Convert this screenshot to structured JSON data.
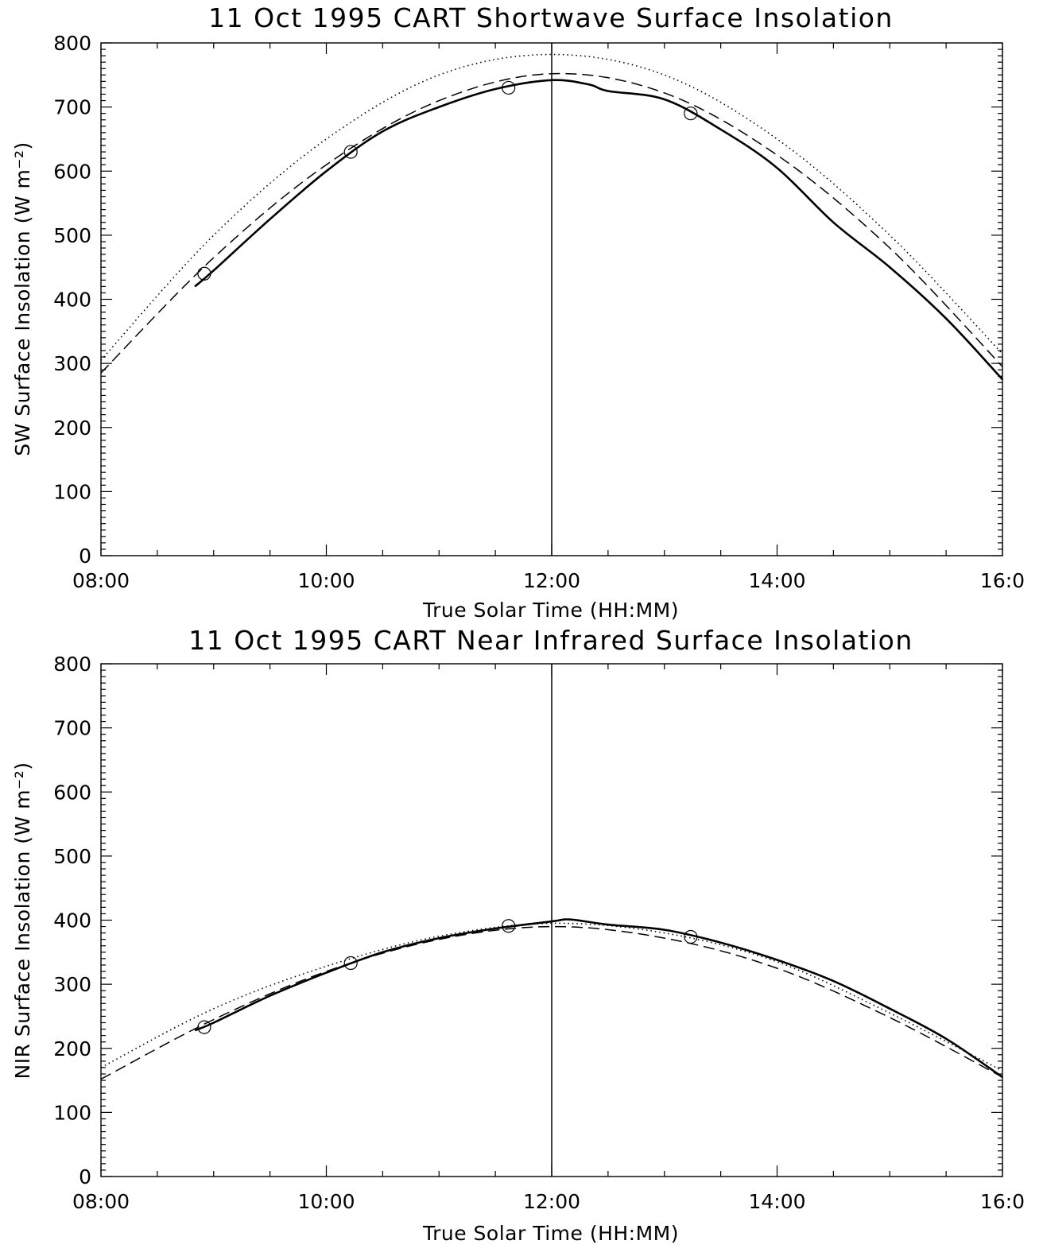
{
  "chart_data": [
    {
      "type": "line",
      "title": "11 Oct 1995 CART Shortwave Surface Insolation",
      "xlabel": "True Solar Time (HH:MM)",
      "ylabel": "SW Surface Insolation (W m⁻²)",
      "xlim": [
        "08:00",
        "16:00"
      ],
      "ylim": [
        0,
        800
      ],
      "x_ticks": [
        "08:00",
        "10:00",
        "12:00",
        "14:00",
        "16:0"
      ],
      "y_ticks": [
        "0",
        "100",
        "200",
        "300",
        "400",
        "500",
        "600",
        "700",
        "800"
      ],
      "grid": false,
      "reference_line_x": "12:00",
      "series": [
        {
          "style": "dotted",
          "x": [
            "08:00",
            "09:00",
            "10:00",
            "11:00",
            "12:00",
            "13:00",
            "14:00",
            "15:00",
            "16:00"
          ],
          "y": [
            305,
            500,
            650,
            750,
            782,
            750,
            650,
            500,
            315
          ]
        },
        {
          "style": "dashed",
          "x": [
            "08:00",
            "09:00",
            "10:00",
            "11:00",
            "12:00",
            "13:00",
            "14:00",
            "15:00",
            "16:00"
          ],
          "y": [
            285,
            465,
            610,
            710,
            752,
            722,
            625,
            480,
            295
          ]
        },
        {
          "style": "solid",
          "x": [
            "08:50",
            "09:00",
            "09:30",
            "10:00",
            "10:30",
            "11:00",
            "11:30",
            "12:00",
            "12:20",
            "12:30",
            "13:00",
            "13:30",
            "14:00",
            "14:30",
            "15:00",
            "15:30",
            "16:00"
          ],
          "y": [
            420,
            445,
            525,
            600,
            662,
            700,
            728,
            742,
            735,
            725,
            712,
            665,
            605,
            520,
            450,
            370,
            275
          ]
        },
        {
          "style": "circle-markers",
          "x": [
            "08:55",
            "10:13",
            "11:37",
            "13:14"
          ],
          "y": [
            440,
            630,
            730,
            690
          ]
        }
      ]
    },
    {
      "type": "line",
      "title": "11 Oct 1995 CART Near Infrared Surface Insolation",
      "xlabel": "True Solar Time (HH:MM)",
      "ylabel": "NIR Surface Insolation (W m⁻²)",
      "xlim": [
        "08:00",
        "16:00"
      ],
      "ylim": [
        0,
        800
      ],
      "x_ticks": [
        "08:00",
        "10:00",
        "12:00",
        "14:00",
        "16:0"
      ],
      "y_ticks": [
        "0",
        "100",
        "200",
        "300",
        "400",
        "500",
        "600",
        "700",
        "800"
      ],
      "grid": false,
      "reference_line_x": "12:00",
      "series": [
        {
          "style": "dotted",
          "x": [
            "08:00",
            "09:00",
            "10:00",
            "11:00",
            "12:00",
            "13:00",
            "14:00",
            "15:00",
            "16:00"
          ],
          "y": [
            170,
            262,
            328,
            375,
            395,
            380,
            335,
            255,
            165
          ]
        },
        {
          "style": "dashed",
          "x": [
            "08:00",
            "09:00",
            "10:00",
            "11:00",
            "12:00",
            "13:00",
            "14:00",
            "15:00",
            "16:00"
          ],
          "y": [
            152,
            245,
            320,
            370,
            390,
            372,
            325,
            248,
            155
          ]
        },
        {
          "style": "solid",
          "x": [
            "08:50",
            "09:00",
            "09:30",
            "10:00",
            "10:30",
            "11:00",
            "11:30",
            "12:00",
            "12:10",
            "12:30",
            "13:00",
            "13:30",
            "14:00",
            "14:30",
            "15:00",
            "15:30",
            "16:00"
          ],
          "y": [
            228,
            240,
            282,
            318,
            350,
            372,
            387,
            398,
            401,
            393,
            385,
            365,
            338,
            305,
            262,
            215,
            155
          ]
        },
        {
          "style": "circle-markers",
          "x": [
            "08:55",
            "10:13",
            "11:37",
            "13:14"
          ],
          "y": [
            233,
            333,
            391,
            374
          ]
        }
      ]
    }
  ]
}
